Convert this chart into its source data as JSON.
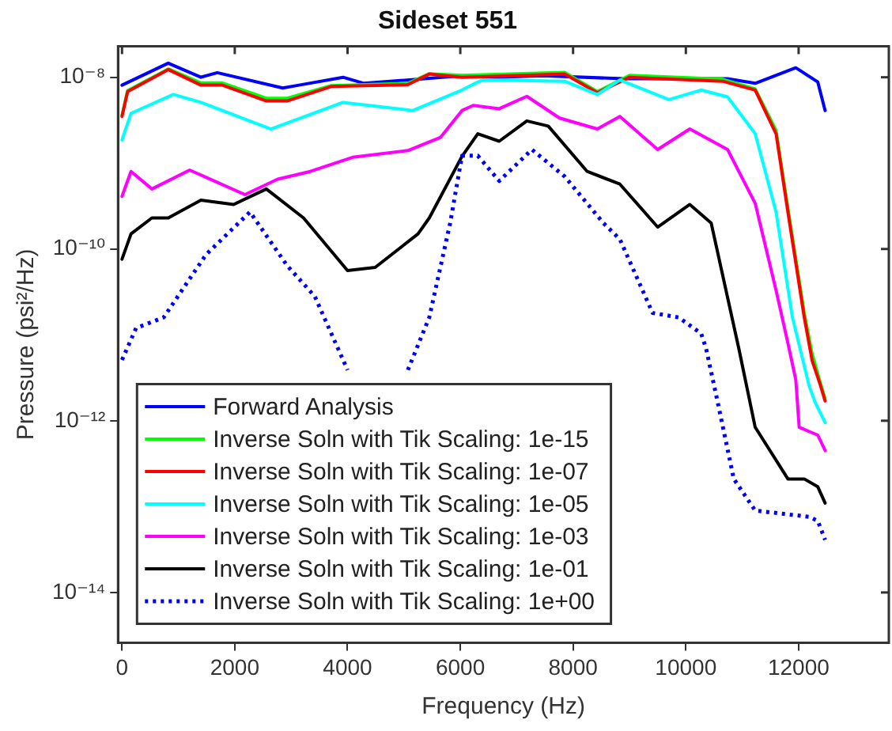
{
  "chart_data": {
    "type": "line",
    "title": "Sideset 551",
    "xlabel": "Frequency (Hz)",
    "ylabel": "Pressure (psi²/Hz)",
    "log": "y",
    "xlim": [
      -70,
      13600
    ],
    "xticks": [
      0,
      2000,
      4000,
      6000,
      8000,
      10000,
      12000
    ],
    "ylim": [
      2.6e-15,
      2.3e-08
    ],
    "yticks": [
      {
        "value": 1e-08,
        "label": "10⁻⁸"
      },
      {
        "value": 1e-10,
        "label": "10⁻¹⁰"
      },
      {
        "value": 1e-12,
        "label": "10⁻¹²"
      },
      {
        "value": 1e-14,
        "label": "10⁻¹⁴"
      }
    ],
    "grid": false,
    "legend": "bottom left",
    "marker": "none",
    "line_style": "solid",
    "series": [
      {
        "name": "Forward Analysis",
        "color": "#0000ff",
        "x": [
          0,
          820,
          1400,
          1690,
          2850,
          3140,
          3920,
          4290,
          6030,
          6600,
          7470,
          8920,
          10070,
          10740,
          11230,
          11950,
          12340,
          12470
        ],
        "values": [
          8.1e-09,
          1.46e-08,
          1e-08,
          1.13e-08,
          7.5e-09,
          8.1e-09,
          1e-08,
          8.5e-09,
          1.04e-08,
          1e-08,
          1.04e-08,
          9.6e-09,
          9.6e-09,
          9.6e-09,
          8.5e-09,
          1.29e-08,
          8.8e-09,
          4.1e-09
        ]
      },
      {
        "name": "Inverse Soln with Tik Scaling: 1e-15",
        "color": "#00ff00",
        "x": [
          0,
          100,
          820,
          1400,
          1780,
          2560,
          2930,
          3710,
          5070,
          5450,
          6030,
          7850,
          8430,
          9000,
          10650,
          11230,
          11600,
          11810,
          12100,
          12240,
          12370,
          12470
        ],
        "values": [
          3.6e-09,
          7e-09,
          1.25e-08,
          8.6e-09,
          8.6e-09,
          5.7e-09,
          5.7e-09,
          8e-09,
          8.5e-09,
          1.1e-08,
          1.05e-08,
          1.14e-08,
          6.8e-09,
          1.05e-08,
          9.5e-09,
          7.3e-09,
          2.4e-09,
          3e-10,
          1.8e-11,
          6e-12,
          3e-12,
          1.8e-12
        ]
      },
      {
        "name": "Inverse Soln with Tik Scaling: 1e-07",
        "color": "#ff0000",
        "x": [
          0,
          100,
          820,
          1400,
          1780,
          2560,
          2930,
          3710,
          5070,
          5450,
          6030,
          7850,
          8430,
          9000,
          10650,
          11230,
          11600,
          11810,
          12100,
          12240,
          12370,
          12470
        ],
        "values": [
          3.5e-09,
          6.8e-09,
          1.23e-08,
          8.1e-09,
          8.1e-09,
          5.3e-09,
          5.3e-09,
          7.8e-09,
          8.2e-09,
          1.09e-08,
          1e-08,
          1.09e-08,
          6.6e-09,
          1e-08,
          9e-09,
          7.1e-09,
          2.2e-09,
          2.7e-10,
          1.6e-11,
          5e-12,
          2.8e-12,
          1.7e-12
        ]
      },
      {
        "name": "Inverse Soln with Tik Scaling: 1e-05",
        "color": "#00ffff",
        "x": [
          0,
          160,
          910,
          1400,
          2640,
          3920,
          5160,
          6030,
          6230,
          6400,
          7850,
          8430,
          8830,
          9700,
          10270,
          10740,
          11230,
          11600,
          11890,
          12190,
          12300,
          12470
        ],
        "values": [
          1.86e-09,
          3.8e-09,
          6.3e-09,
          5.1e-09,
          2.5e-09,
          5.1e-09,
          4.1e-09,
          7.1e-09,
          8.3e-09,
          9.3e-09,
          9e-09,
          6.3e-09,
          9.3e-09,
          5.5e-09,
          7.1e-09,
          5.9e-09,
          2.2e-09,
          2.7e-10,
          1.6e-11,
          2.5e-12,
          1.6e-12,
          9.5e-13
        ]
      },
      {
        "name": "Inverse Soln with Tik Scaling: 1e-03",
        "color": "#ff00ff",
        "x": [
          0,
          160,
          530,
          1200,
          2180,
          2760,
          3340,
          4090,
          5070,
          5650,
          6030,
          6230,
          6690,
          7180,
          7760,
          8430,
          8830,
          9500,
          10070,
          10740,
          11230,
          11600,
          11810,
          11950,
          12010,
          12340,
          12470
        ],
        "values": [
          4.1e-10,
          8e-10,
          5e-10,
          8.3e-10,
          4.3e-10,
          6.5e-10,
          8e-10,
          1.17e-09,
          1.4e-09,
          2e-09,
          4.1e-09,
          4.7e-09,
          4.3e-09,
          6e-09,
          3.35e-09,
          2.5e-09,
          3.5e-09,
          1.44e-09,
          2.5e-09,
          1.44e-09,
          3.4e-10,
          3.3e-11,
          8e-12,
          3e-12,
          8.4e-13,
          6.8e-13,
          4.5e-13
        ]
      },
      {
        "name": "Inverse Soln with Tik Scaling: 1e-01",
        "color": "#000000",
        "x": [
          0,
          160,
          530,
          820,
          1400,
          1980,
          2560,
          3220,
          4000,
          4490,
          5250,
          5450,
          6030,
          6310,
          6690,
          7180,
          7560,
          8250,
          8830,
          9500,
          10070,
          10450,
          10940,
          11230,
          11810,
          12100,
          12340,
          12470
        ],
        "values": [
          7.6e-11,
          1.5e-10,
          2.3e-10,
          2.3e-10,
          3.7e-10,
          3.3e-10,
          5e-10,
          2.3e-10,
          5.6e-11,
          6.1e-11,
          1.5e-10,
          2.3e-10,
          1.2e-09,
          2.2e-09,
          1.8e-09,
          3.1e-09,
          2.7e-09,
          8e-10,
          5.7e-10,
          1.8e-10,
          3.3e-10,
          2e-10,
          6.9e-12,
          8.4e-13,
          2.1e-13,
          2.1e-13,
          1.7e-13,
          1.1e-13
        ]
      },
      {
        "name": "Inverse Soln with Tik Scaling: 1e+00",
        "color": "#0000ff",
        "line_style": "dotted",
        "x": [
          0,
          250,
          740,
          1490,
          2270,
          2930,
          3420,
          4000,
          4380,
          4780,
          5070,
          5450,
          5820,
          6030,
          6310,
          6690,
          7270,
          7850,
          8540,
          8830,
          9410,
          9870,
          10270,
          10360,
          10560,
          10850,
          11230,
          12190,
          12340,
          12470
        ],
        "values": [
          5.1e-12,
          1.2e-11,
          1.6e-11,
          8.6e-11,
          2.7e-10,
          6.4e-11,
          2.8e-11,
          3.9e-12,
          null,
          null,
          3.9e-12,
          1.6e-11,
          2e-10,
          1.22e-09,
          1.22e-09,
          6.2e-10,
          1.44e-09,
          7e-10,
          2e-10,
          1.3e-10,
          1.8e-11,
          1.6e-11,
          1.04e-11,
          6.9e-12,
          1.7e-12,
          2.1e-13,
          9e-14,
          7.6e-14,
          6.8e-14,
          4.1e-14
        ]
      }
    ]
  }
}
